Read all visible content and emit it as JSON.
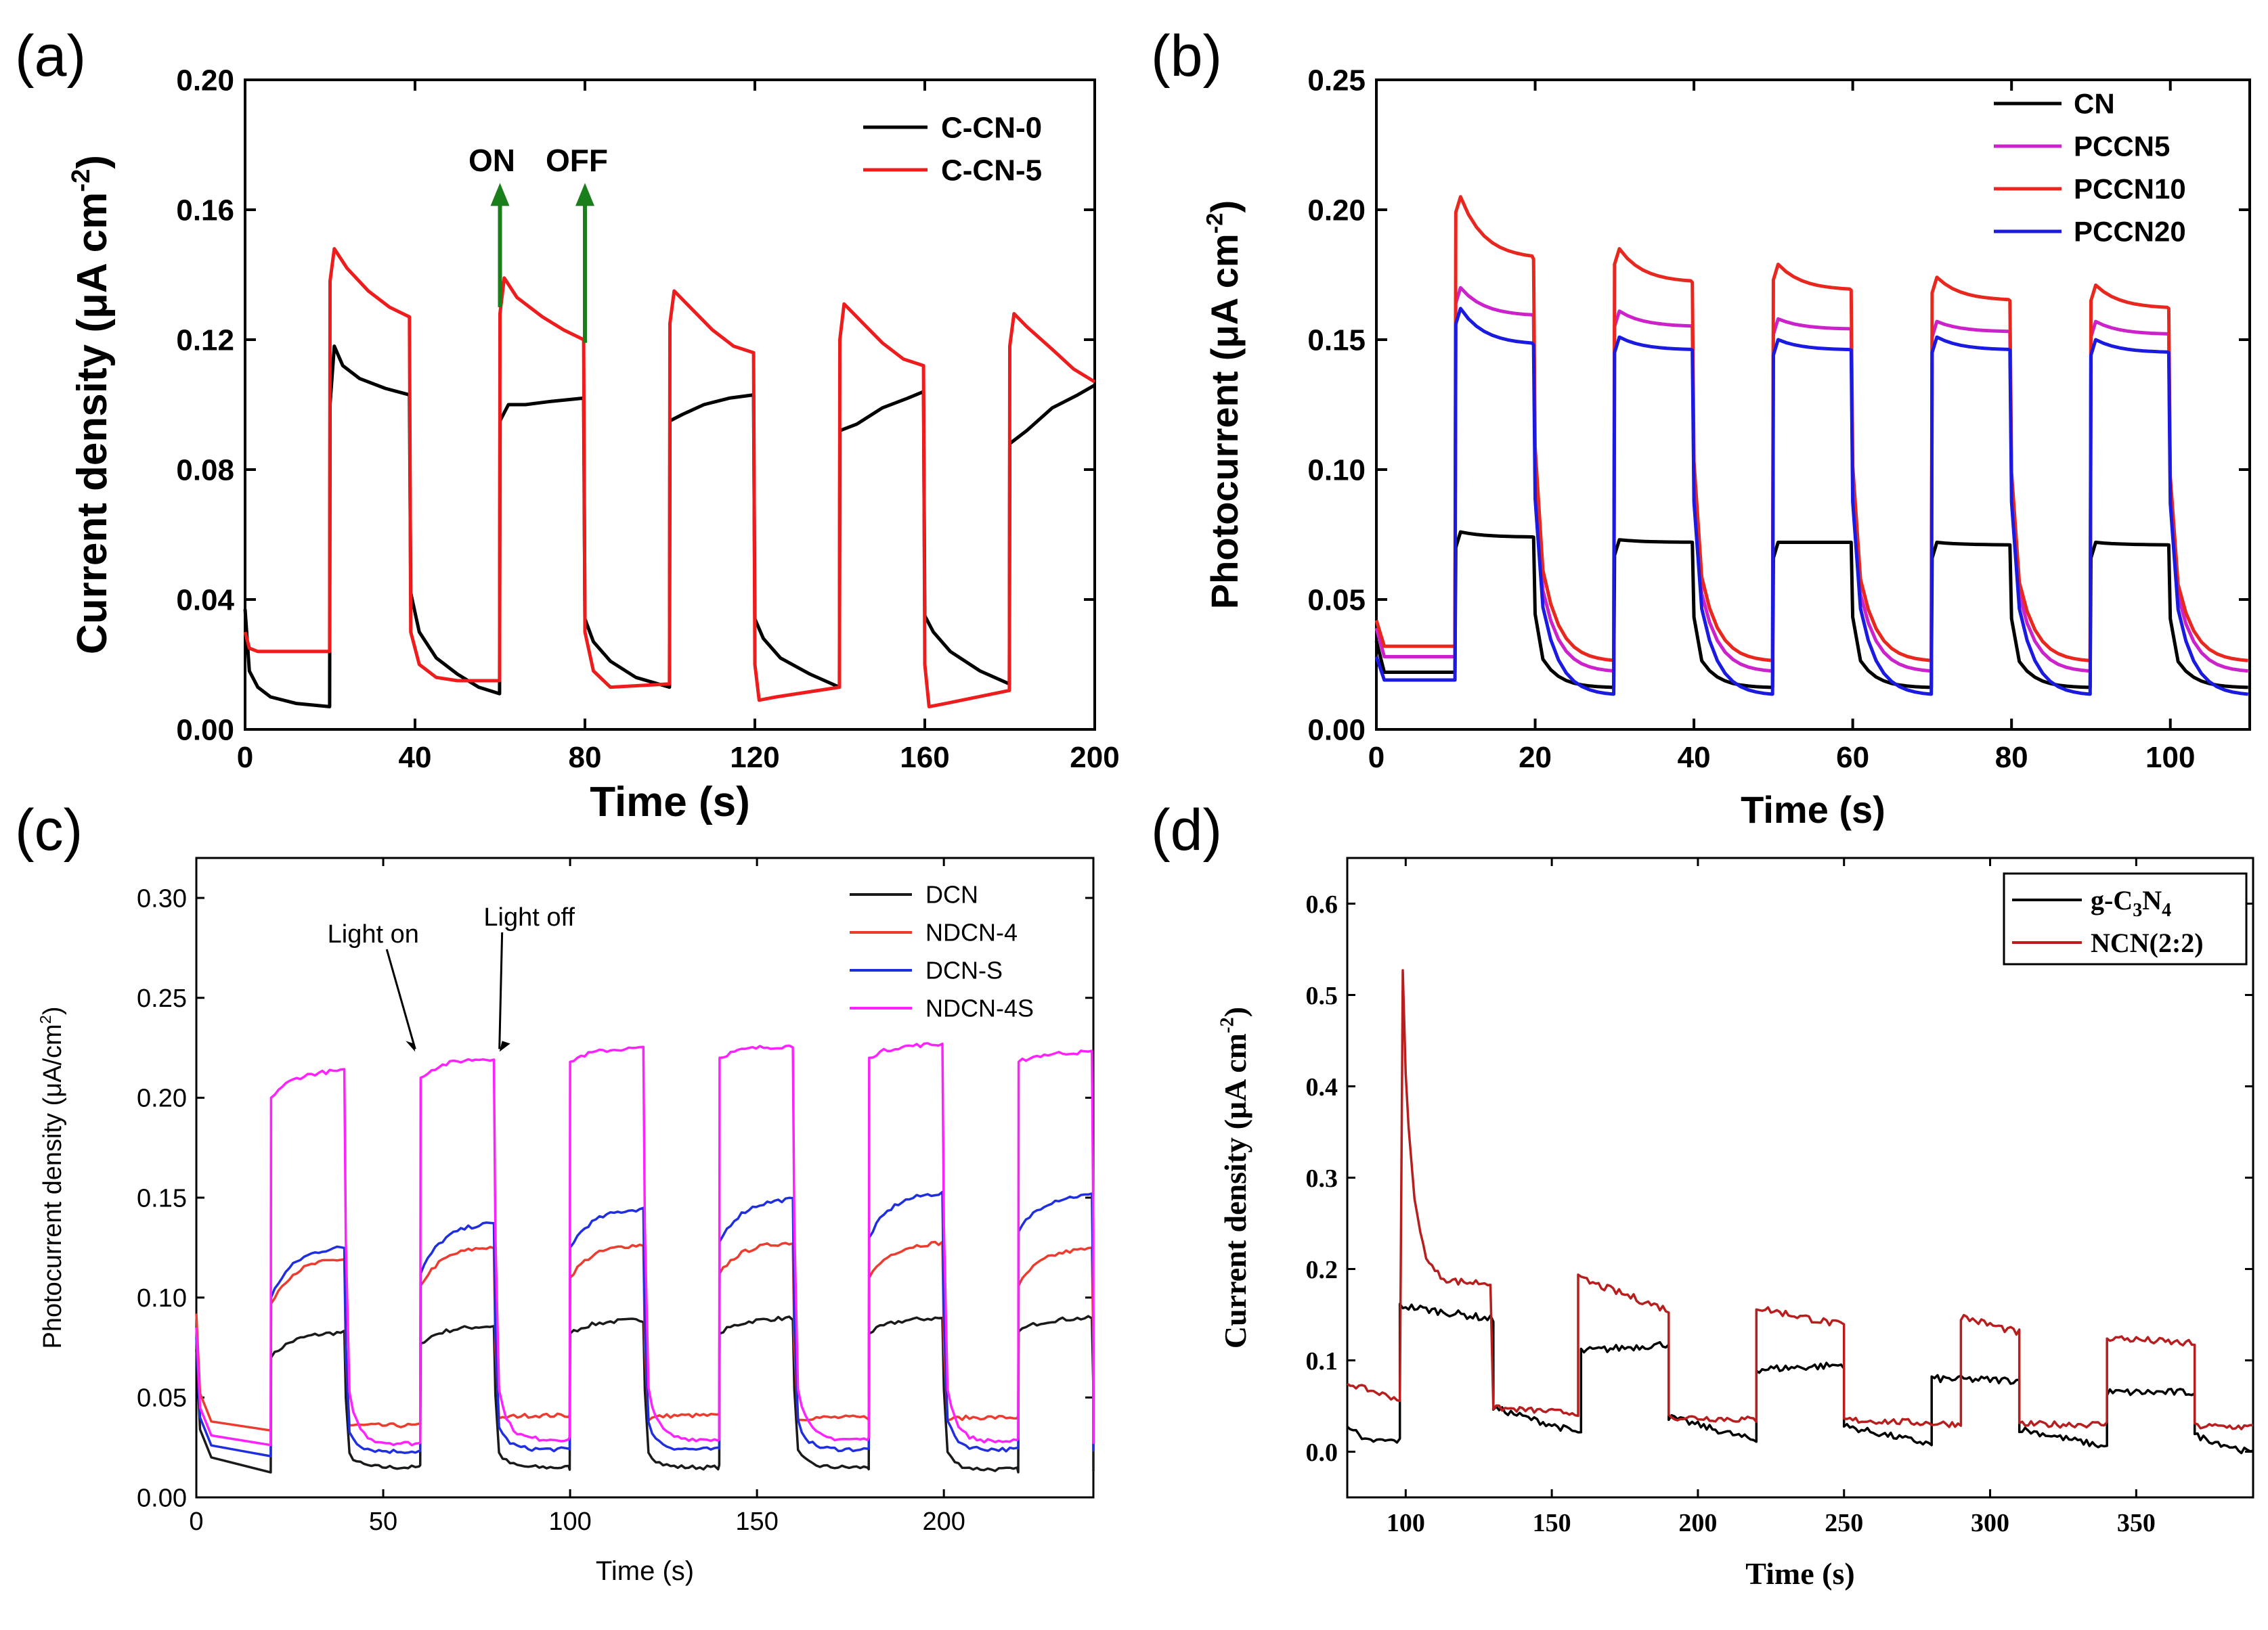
{
  "panels": [
    {
      "letter": "(a)",
      "chart_data": {
        "type": "line",
        "xlabel": "Time (s)",
        "ylabel": "Current density (μA cm",
        "ylabel_sup": "-2",
        "ylabel_close": ")",
        "xlim": [
          0,
          200
        ],
        "ylim": [
          0,
          0.2
        ],
        "xticks": [
          0,
          40,
          80,
          120,
          160,
          200
        ],
        "yticks": [
          0.0,
          0.04,
          0.08,
          0.12,
          0.16,
          0.2
        ],
        "ytick_labels": [
          "0.00",
          "0.04",
          "0.08",
          "0.12",
          "0.16",
          "0.20"
        ],
        "legend": "top-right",
        "annotations": [
          {
            "text": "ON",
            "x": 60,
            "arrow_from": 0.13,
            "arrow_to": 0.167,
            "color": "#1a7f1a"
          },
          {
            "text": "OFF",
            "x": 80,
            "arrow_from": 0.119,
            "arrow_to": 0.167,
            "color": "#1a7f1a"
          }
        ],
        "series": [
          {
            "name": "C-CN-0",
            "color": "#000000",
            "points": [
              [
                0,
                0.037
              ],
              [
                1,
                0.018
              ],
              [
                3,
                0.013
              ],
              [
                6,
                0.01
              ],
              [
                12,
                0.008
              ],
              [
                19.9,
                0.007
              ],
              [
                20,
                0.1
              ],
              [
                21,
                0.118
              ],
              [
                23,
                0.112
              ],
              [
                27,
                0.108
              ],
              [
                33,
                0.105
              ],
              [
                38.7,
                0.103
              ],
              [
                39,
                0.042
              ],
              [
                41,
                0.03
              ],
              [
                45,
                0.022
              ],
              [
                50,
                0.017
              ],
              [
                55,
                0.013
              ],
              [
                59.9,
                0.011
              ],
              [
                60,
                0.095
              ],
              [
                62,
                0.1
              ],
              [
                66,
                0.1
              ],
              [
                72,
                0.101
              ],
              [
                79.7,
                0.102
              ],
              [
                80,
                0.034
              ],
              [
                82,
                0.027
              ],
              [
                86,
                0.021
              ],
              [
                92,
                0.016
              ],
              [
                99.9,
                0.013
              ],
              [
                100,
                0.095
              ],
              [
                103,
                0.097
              ],
              [
                108,
                0.1
              ],
              [
                114,
                0.102
              ],
              [
                119.7,
                0.103
              ],
              [
                120,
                0.034
              ],
              [
                122,
                0.028
              ],
              [
                126,
                0.022
              ],
              [
                133,
                0.017
              ],
              [
                139.9,
                0.013
              ],
              [
                140,
                0.092
              ],
              [
                144,
                0.094
              ],
              [
                150,
                0.099
              ],
              [
                156,
                0.102
              ],
              [
                159.7,
                0.104
              ],
              [
                160,
                0.035
              ],
              [
                162,
                0.03
              ],
              [
                166,
                0.024
              ],
              [
                173,
                0.018
              ],
              [
                179.9,
                0.014
              ],
              [
                180,
                0.088
              ],
              [
                184,
                0.092
              ],
              [
                190,
                0.099
              ],
              [
                196,
                0.103
              ],
              [
                200,
                0.106
              ]
            ]
          },
          {
            "name": "C-CN-5",
            "color": "#ee1c1c",
            "points": [
              [
                0,
                0.03
              ],
              [
                1,
                0.025
              ],
              [
                3,
                0.024
              ],
              [
                19.9,
                0.024
              ],
              [
                20,
                0.138
              ],
              [
                21,
                0.148
              ],
              [
                24,
                0.142
              ],
              [
                29,
                0.135
              ],
              [
                34,
                0.13
              ],
              [
                38.7,
                0.127
              ],
              [
                39,
                0.03
              ],
              [
                41,
                0.02
              ],
              [
                45,
                0.016
              ],
              [
                50,
                0.015
              ],
              [
                59.9,
                0.015
              ],
              [
                60,
                0.128
              ],
              [
                61,
                0.139
              ],
              [
                64,
                0.133
              ],
              [
                70,
                0.127
              ],
              [
                75,
                0.123
              ],
              [
                79.7,
                0.12
              ],
              [
                80,
                0.03
              ],
              [
                82,
                0.018
              ],
              [
                86,
                0.013
              ],
              [
                99.9,
                0.014
              ],
              [
                100,
                0.125
              ],
              [
                101,
                0.135
              ],
              [
                104,
                0.131
              ],
              [
                110,
                0.123
              ],
              [
                115,
                0.118
              ],
              [
                119.7,
                0.116
              ],
              [
                120,
                0.02
              ],
              [
                121,
                0.009
              ],
              [
                125,
                0.01
              ],
              [
                139.9,
                0.013
              ],
              [
                140,
                0.12
              ],
              [
                141,
                0.131
              ],
              [
                144,
                0.127
              ],
              [
                150,
                0.119
              ],
              [
                155,
                0.114
              ],
              [
                159.7,
                0.112
              ],
              [
                160,
                0.02
              ],
              [
                161,
                0.007
              ],
              [
                165,
                0.008
              ],
              [
                179.9,
                0.012
              ],
              [
                180,
                0.118
              ],
              [
                181,
                0.128
              ],
              [
                184,
                0.124
              ],
              [
                190,
                0.117
              ],
              [
                195,
                0.111
              ],
              [
                200,
                0.107
              ]
            ]
          }
        ]
      }
    },
    {
      "letter": "(b)",
      "chart_data": {
        "type": "line",
        "xlabel": "Time (s)",
        "ylabel": "Photocurrent (μA cm",
        "ylabel_sup": "-2",
        "ylabel_close": ")",
        "xlim": [
          0,
          110
        ],
        "ylim": [
          0,
          0.25
        ],
        "xticks": [
          0,
          20,
          40,
          60,
          80,
          100
        ],
        "yticks": [
          0.0,
          0.05,
          0.1,
          0.15,
          0.2,
          0.25
        ],
        "ytick_labels": [
          "0.00",
          "0.05",
          "0.10",
          "0.15",
          "0.20",
          "0.25"
        ],
        "legend": "top-right",
        "series": [
          {
            "name": "CN",
            "color": "#000000",
            "base": 0.016,
            "on_off": [
              0.013,
              0.075,
              0.072,
              0.072,
              0.071,
              0.071
            ],
            "peak": [
              0.076,
              0.073,
              0.072,
              0.072,
              0.072
            ],
            "hi": [
              0.074,
              0.072,
              0.072,
              0.071,
              0.071
            ]
          },
          {
            "name": "PCCN5",
            "color": "#cc22cc",
            "base": 0.022,
            "peak": [
              0.17,
              0.161,
              0.158,
              0.157,
              0.157
            ],
            "hi": [
              0.159,
              0.155,
              0.154,
              0.153,
              0.152
            ]
          },
          {
            "name": "PCCN10",
            "color": "#e8281e",
            "base": 0.026,
            "peak": [
              0.205,
              0.185,
              0.179,
              0.174,
              0.171
            ],
            "hi": [
              0.181,
              0.172,
              0.169,
              0.165,
              0.162
            ]
          },
          {
            "name": "PCCN20",
            "color": "#1a1ae0",
            "base": 0.013,
            "peak": [
              0.162,
              0.151,
              0.15,
              0.151,
              0.15
            ],
            "hi": [
              0.148,
              0.146,
              0.146,
              0.146,
              0.145
            ]
          }
        ]
      }
    },
    {
      "letter": "(c)",
      "chart_data": {
        "type": "line",
        "xlabel": "Time (s)",
        "ylabel": "Photocurrent density (μA/cm",
        "ylabel_sup": "2",
        "ylabel_close": ")",
        "xlim": [
          0,
          240
        ],
        "ylim": [
          0,
          0.32
        ],
        "xticks": [
          0,
          50,
          100,
          150,
          200
        ],
        "yticks": [
          0.0,
          0.05,
          0.1,
          0.15,
          0.2,
          0.25,
          0.3
        ],
        "ytick_labels": [
          "0.00",
          "0.05",
          "0.10",
          "0.15",
          "0.20",
          "0.25",
          "0.30"
        ],
        "legend": "top-right",
        "annotations": [
          {
            "text": "Light on",
            "x": 60,
            "y": 0.221
          },
          {
            "text": "Light off",
            "x": 80,
            "y": 0.221
          }
        ],
        "series": [
          {
            "name": "DCN",
            "color": "#1a1a1a",
            "off": [
              0.014,
              0.015,
              0.015,
              0.015,
              0.015,
              0.014
            ],
            "lo_on": [
              0.07,
              0.077,
              0.082,
              0.082,
              0.082,
              0.083
            ],
            "hi_on": [
              0.083,
              0.086,
              0.089,
              0.09,
              0.09,
              0.09
            ]
          },
          {
            "name": "NDCN-4",
            "color": "#ee3b2f",
            "off": [
              0.032,
              0.036,
              0.041,
              0.041,
              0.04,
              0.04
            ],
            "lo_on": [
              0.097,
              0.106,
              0.11,
              0.112,
              0.11,
              0.106
            ],
            "hi_on": [
              0.12,
              0.126,
              0.127,
              0.128,
              0.128,
              0.125
            ]
          },
          {
            "name": "DCN-S",
            "color": "#1f2fe0",
            "off": [
              0.02,
              0.023,
              0.024,
              0.024,
              0.024,
              0.024
            ],
            "lo_on": [
              0.1,
              0.112,
              0.125,
              0.128,
              0.13,
              0.133
            ],
            "hi_on": [
              0.126,
              0.138,
              0.145,
              0.15,
              0.153,
              0.152
            ]
          },
          {
            "name": "NDCN-4S",
            "color": "#ff22ff",
            "off": [
              0.025,
              0.027,
              0.029,
              0.029,
              0.029,
              0.028
            ],
            "lo_on": [
              0.2,
              0.21,
              0.218,
              0.22,
              0.22,
              0.218
            ],
            "hi_on": [
              0.214,
              0.22,
              0.225,
              0.226,
              0.227,
              0.223
            ]
          }
        ]
      }
    },
    {
      "letter": "(d)",
      "chart_data": {
        "type": "line",
        "xlabel": "Time (s)",
        "ylabel": "Current density (μA cm",
        "ylabel_sup": "-2",
        "ylabel_close": ")",
        "xlim": [
          80,
          390
        ],
        "ylim": [
          -0.05,
          0.65
        ],
        "xticks": [
          100,
          150,
          200,
          250,
          300,
          350
        ],
        "yticks": [
          0.0,
          0.1,
          0.2,
          0.3,
          0.4,
          0.5,
          0.6
        ],
        "ytick_labels": [
          "0.0",
          "0.1",
          "0.2",
          "0.3",
          "0.4",
          "0.5",
          "0.6"
        ],
        "legend": "top-right",
        "series": [
          {
            "name": "g-C3N4",
            "legend_parts": [
              "g-C",
              "3",
              "N",
              "4"
            ],
            "color": "#000000"
          },
          {
            "name": "NCN(2:2)",
            "legend_parts": [
              "NCN(2:2)"
            ],
            "color": "#b81e1e"
          }
        ]
      }
    }
  ]
}
